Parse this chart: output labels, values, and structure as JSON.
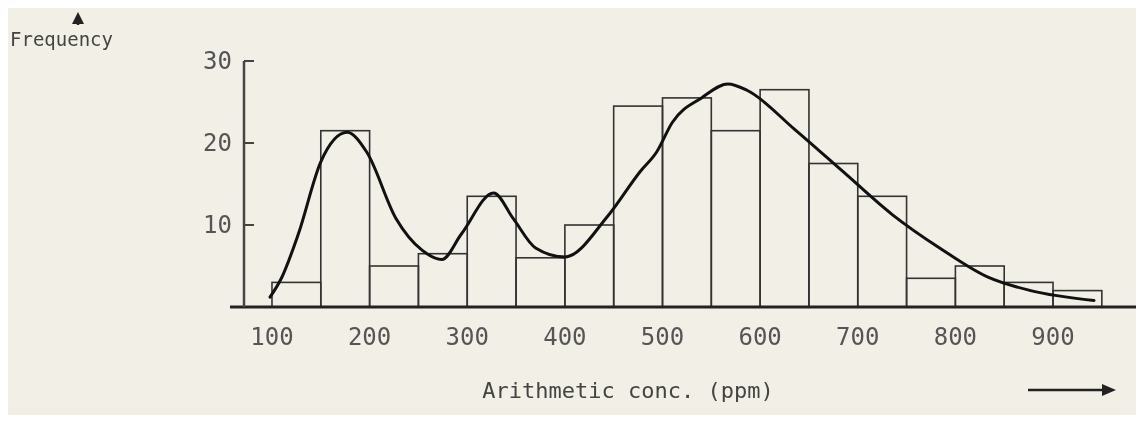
{
  "chart_data": {
    "type": "histogram",
    "xlabel": "Arithmetic conc. (ppm)",
    "ylabel": "Frequency",
    "bins": [
      100,
      150,
      200,
      250,
      300,
      350,
      400,
      450,
      500,
      550,
      600,
      650,
      700,
      750,
      800,
      850,
      900,
      950
    ],
    "values": [
      3,
      21.5,
      5,
      6.5,
      13.5,
      6,
      10,
      24.5,
      25.5,
      21.5,
      26.5,
      17.5,
      13.5,
      3.5,
      5,
      3,
      2
    ],
    "color": "#333333",
    "series": [
      {
        "type": "line",
        "color": "#111111",
        "x": [
          98,
          110,
          127,
          150,
          177,
          197,
          227,
          254,
          274,
          294,
          327,
          347,
          370,
          400,
          444,
          477,
          494,
          510,
          540,
          567,
          587,
          635,
          685,
          735,
          785,
          834,
          877,
          942
        ],
        "values": [
          1.2,
          3.6,
          8.9,
          17.7,
          21.3,
          18.9,
          10.8,
          6.9,
          5.8,
          8.9,
          13.9,
          10.8,
          7.2,
          6.1,
          11.1,
          16.5,
          18.9,
          22.5,
          25.5,
          27.2,
          26.4,
          21.7,
          16.5,
          11.3,
          7.1,
          3.6,
          2,
          0.8
        ]
      }
    ],
    "xlim": [
      57,
      985
    ],
    "ylim": [
      0,
      30
    ],
    "xticks": [
      100,
      200,
      300,
      400,
      500,
      600,
      700,
      800,
      900
    ],
    "yticks": [
      10,
      20,
      30
    ],
    "grid": false
  }
}
